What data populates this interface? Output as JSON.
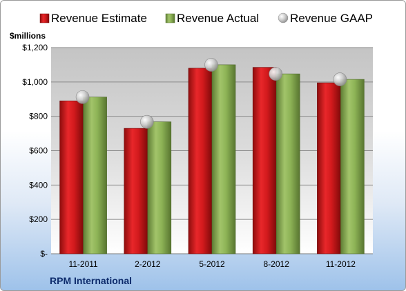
{
  "chart_data": {
    "type": "bar",
    "y_unit_label": "$millions",
    "categories": [
      "11-2011",
      "2-2012",
      "5-2012",
      "8-2012",
      "11-2012"
    ],
    "series": [
      {
        "name": "Revenue Estimate",
        "type": "bar",
        "values": [
          890,
          730,
          1080,
          1085,
          995
        ],
        "color": "#d7191c"
      },
      {
        "name": "Revenue Actual",
        "type": "bar",
        "values": [
          912,
          768,
          1100,
          1047,
          1015
        ],
        "color": "#8db356"
      },
      {
        "name": "Revenue GAAP",
        "type": "marker",
        "values": [
          912,
          768,
          1100,
          1047,
          1015
        ],
        "color": "#c8c8c8"
      }
    ],
    "ylim": [
      0,
      1200
    ],
    "yticks": [
      {
        "value": 0,
        "label": "$-"
      },
      {
        "value": 200,
        "label": "$200"
      },
      {
        "value": 400,
        "label": "$400"
      },
      {
        "value": 600,
        "label": "$600"
      },
      {
        "value": 800,
        "label": "$800"
      },
      {
        "value": 1000,
        "label": "$1,000"
      },
      {
        "value": 1200,
        "label": "$1,200"
      }
    ],
    "grid": true,
    "legend_position": "top"
  },
  "footer": {
    "company": "RPM International"
  }
}
